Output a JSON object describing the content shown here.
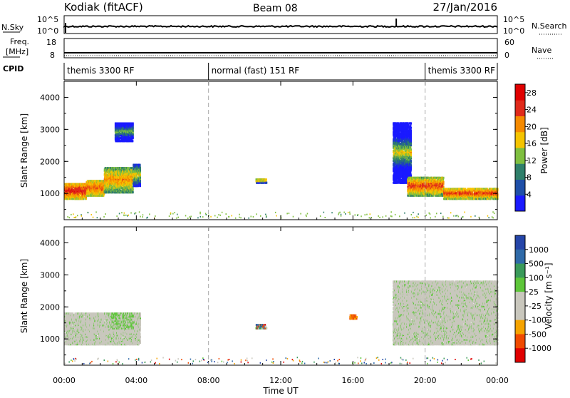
{
  "header": {
    "station": "Kodiak (fitACF)",
    "beam": "Beam 08",
    "date": "27/Jan/2016"
  },
  "summary": {
    "nsky_label": "N.Sky",
    "nsky_ticks": [
      "10^5",
      "10^0"
    ],
    "nsearch_label": "N.Search",
    "nsearch_ticks": [
      "10^5",
      "10^0"
    ],
    "freq_label": [
      "Freq.",
      "[MHz]"
    ],
    "freq_ticks": [
      "18",
      "8"
    ],
    "nave_label": "Nave",
    "nave_ticks": [
      "60",
      "0"
    ],
    "cpid_label": "CPID",
    "cpid_segments": [
      {
        "label": "themis 3300 RF",
        "start_hour": 0,
        "end_hour": 8
      },
      {
        "label": "normal (fast) 151 RF",
        "start_hour": 8,
        "end_hour": 20
      },
      {
        "label": "themis 3300 RF",
        "start_hour": 20,
        "end_hour": 24
      }
    ]
  },
  "colors": {
    "power_scale": [
      "#1a1aff",
      "#1f4fa8",
      "#2f7f6a",
      "#7fbf3f",
      "#f5c400",
      "#f58a00",
      "#e02a1a",
      "#e00000"
    ],
    "velocity_scale": [
      "#e00000",
      "#f04a00",
      "#f5a300",
      "#c9c7bd",
      "#c9c7bd",
      "#5ec63a",
      "#3a9a5a",
      "#2f6aa8",
      "#2545a8"
    ],
    "ground_scatter": "#c9c7bd"
  },
  "chart_data": [
    {
      "type": "heatmap",
      "name": "power",
      "xlabel": "",
      "ylabel": "Slant Range [km]",
      "xlim": [
        0,
        24
      ],
      "ylim": [
        180,
        4500
      ],
      "yticks": [
        "1000",
        "2000",
        "3000",
        "4000"
      ],
      "ytick_values": [
        1000,
        2000,
        3000,
        4000
      ],
      "colorbar_label": "Power [dB]",
      "colorbar_ticks": [
        "4",
        "8",
        "12",
        "16",
        "20",
        "24",
        "28"
      ],
      "colorbar_range": [
        0,
        30
      ],
      "regions": [
        {
          "t0": 0.0,
          "t1": 1.2,
          "r0": 800,
          "r1": 1300,
          "level": 20,
          "spread": 300
        },
        {
          "t0": 1.2,
          "t1": 2.2,
          "r0": 900,
          "r1": 1400,
          "level": 16,
          "spread": 400
        },
        {
          "t0": 2.2,
          "t1": 3.8,
          "r0": 1000,
          "r1": 1800,
          "level": 14,
          "spread": 500
        },
        {
          "t0": 3.8,
          "t1": 4.2,
          "r0": 1200,
          "r1": 1900,
          "level": 10,
          "spread": 300
        },
        {
          "t0": 2.8,
          "t1": 3.8,
          "r0": 2600,
          "r1": 3200,
          "level": 6,
          "spread": 200
        },
        {
          "t0": 10.6,
          "t1": 11.2,
          "r0": 1300,
          "r1": 1450,
          "level": 14,
          "spread": 60
        },
        {
          "t0": 18.2,
          "t1": 19.2,
          "r0": 1300,
          "r1": 3200,
          "level": 10,
          "spread": 400
        },
        {
          "t0": 19.0,
          "t1": 21.0,
          "r0": 900,
          "r1": 1500,
          "level": 18,
          "spread": 300
        },
        {
          "t0": 21.0,
          "t1": 24.0,
          "r0": 800,
          "r1": 1150,
          "level": 18,
          "spread": 200
        }
      ]
    },
    {
      "type": "heatmap",
      "name": "velocity",
      "xlabel": "Time UT",
      "ylabel": "Slant Range [km]",
      "xlim": [
        0,
        24
      ],
      "ylim": [
        180,
        4500
      ],
      "xticks": [
        "00:00",
        "04:00",
        "08:00",
        "12:00",
        "16:00",
        "20:00",
        "00:00"
      ],
      "xtick_values": [
        0,
        4,
        8,
        12,
        16,
        20,
        24
      ],
      "yticks": [
        "1000",
        "2000",
        "3000",
        "4000"
      ],
      "ytick_values": [
        1000,
        2000,
        3000,
        4000
      ],
      "colorbar_label": "Velocity [m s⁻¹]",
      "colorbar_ticks": [
        "1000",
        "500",
        "100",
        "25",
        "-25",
        "-100",
        "-500",
        "-1000"
      ],
      "regions": [
        {
          "t0": 0.0,
          "t1": 4.2,
          "r0": 800,
          "r1": 1800,
          "kind": "ground"
        },
        {
          "t0": 2.6,
          "t1": 3.8,
          "r0": 1300,
          "r1": 1800,
          "kind": "slow-positive"
        },
        {
          "t0": 10.6,
          "t1": 11.2,
          "r0": 1300,
          "r1": 1450,
          "kind": "mixed"
        },
        {
          "t0": 15.8,
          "t1": 16.2,
          "r0": 1600,
          "r1": 1750,
          "kind": "negative"
        },
        {
          "t0": 18.2,
          "t1": 24.0,
          "r0": 800,
          "r1": 2800,
          "kind": "ground"
        }
      ]
    }
  ]
}
